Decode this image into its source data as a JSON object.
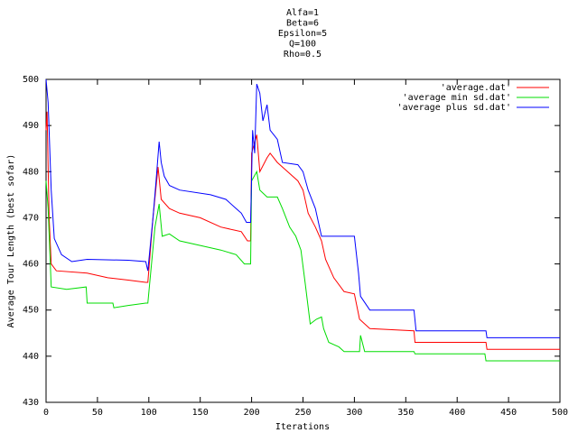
{
  "chart_data": {
    "type": "line",
    "title_lines": [
      "Alfa=1",
      "Beta=6",
      "Epsilon=5",
      "Q=100",
      "Rho=0.5"
    ],
    "x_label": "Iterations",
    "y_label": "Average Tour Length (best sofar)",
    "xlim": [
      0,
      500
    ],
    "xticks": [
      0,
      50,
      100,
      150,
      200,
      250,
      300,
      350,
      400,
      450,
      500
    ],
    "ylim": [
      430,
      500
    ],
    "yticks": [
      430,
      440,
      450,
      460,
      470,
      480,
      490,
      500
    ],
    "grid": false,
    "legend": "top-right",
    "series": [
      {
        "name": "'average.dat'",
        "color": "#ff0000",
        "x": [
          0,
          1,
          3,
          5,
          10,
          40,
          60,
          80,
          97,
          99,
          104,
          109,
          112,
          120,
          130,
          150,
          170,
          190,
          196,
          199,
          200,
          205,
          208,
          215,
          218,
          225,
          235,
          245,
          250,
          255,
          262,
          268,
          272,
          280,
          290,
          300,
          305,
          315,
          358,
          359,
          428,
          429,
          500
        ],
        "values": [
          489,
          493,
          470,
          460,
          458.5,
          458,
          457,
          456.5,
          456,
          456,
          470,
          481,
          474,
          472,
          471,
          470,
          468,
          467,
          465,
          465,
          484,
          488,
          480,
          483,
          484,
          482,
          480,
          478,
          476,
          471,
          468,
          465,
          461,
          457,
          454,
          453.5,
          448,
          446,
          445.5,
          443,
          443,
          441.5,
          441.5
        ]
      },
      {
        "name": "'average min sd.dat'",
        "color": "#00dd00",
        "x": [
          0,
          2,
          5,
          20,
          39,
          40,
          65,
          66,
          80,
          97,
          99,
          106,
          110,
          113,
          120,
          130,
          150,
          170,
          185,
          193,
          199,
          200,
          205,
          208,
          215,
          225,
          230,
          237,
          243,
          248,
          252,
          257,
          263,
          268,
          270,
          275,
          285,
          290,
          305,
          306,
          310,
          358,
          359,
          427,
          428,
          500
        ],
        "values": [
          478,
          472,
          455,
          454.5,
          455,
          451.5,
          451.5,
          450.5,
          451,
          451.5,
          451.5,
          468,
          473,
          466,
          466.5,
          465,
          464,
          463,
          462,
          460,
          460,
          478,
          480,
          476,
          474.5,
          474.5,
          472,
          468,
          466,
          463,
          456,
          447,
          448,
          448.5,
          446,
          443,
          442,
          441,
          441,
          444.5,
          441,
          441,
          440.5,
          440.5,
          439,
          439
        ]
      },
      {
        "name": "'average plus sd.dat'",
        "color": "#0000ff",
        "x": [
          0,
          2,
          5,
          8,
          15,
          25,
          40,
          80,
          97,
          99,
          104,
          107,
          110,
          112,
          115,
          120,
          130,
          160,
          175,
          185,
          190,
          195,
          199,
          201,
          203,
          205,
          208,
          211,
          215,
          218,
          225,
          230,
          245,
          250,
          255,
          262,
          268,
          300,
          304,
          306,
          315,
          358,
          360,
          428,
          429,
          500
        ],
        "values": [
          500,
          495,
          476,
          465.5,
          462,
          460.5,
          461,
          460.8,
          460.5,
          458.5,
          470,
          478,
          486.5,
          482,
          479,
          477,
          476,
          475,
          474,
          472,
          471,
          469,
          469,
          489,
          484,
          499,
          497,
          491,
          494.5,
          489,
          487,
          482,
          481.5,
          480,
          476,
          472,
          466,
          466,
          458,
          453,
          450,
          450,
          445.5,
          445.5,
          444,
          444
        ]
      }
    ]
  }
}
